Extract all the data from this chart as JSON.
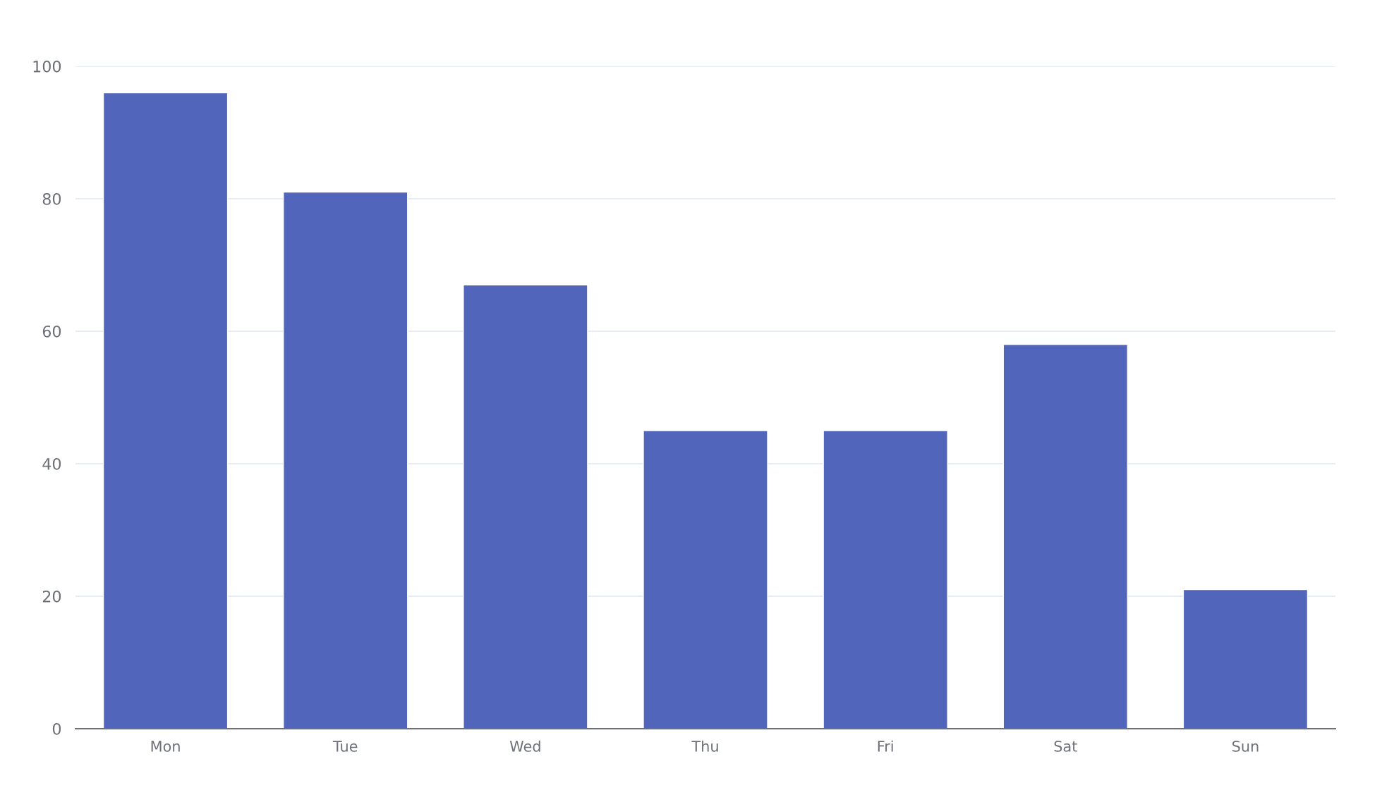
{
  "chart_data": {
    "type": "bar",
    "categories": [
      "Mon",
      "Tue",
      "Wed",
      "Thu",
      "Fri",
      "Sat",
      "Sun"
    ],
    "values": [
      96,
      81,
      67,
      45,
      45,
      58,
      21
    ],
    "color": "#5165bb",
    "ylim": [
      0,
      100
    ],
    "yticks": [
      0,
      20,
      40,
      60,
      80,
      100
    ],
    "grid": "y",
    "legend": false
  }
}
